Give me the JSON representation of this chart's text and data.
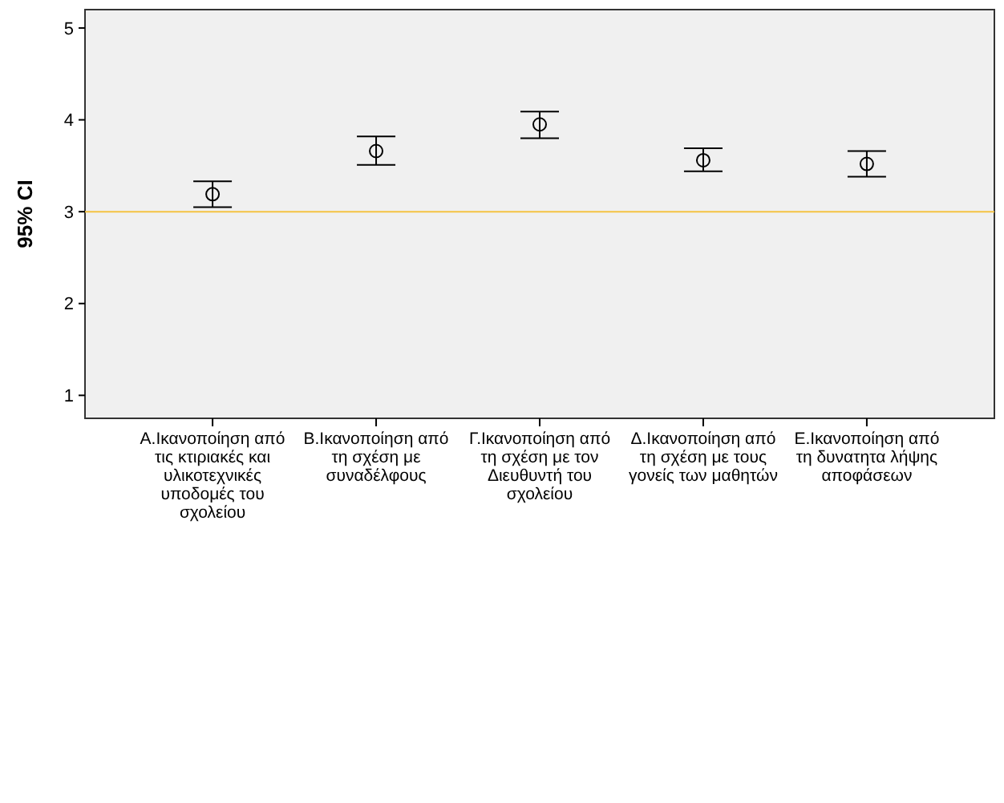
{
  "chart_data": {
    "type": "scatter",
    "ylabel": "95% CI",
    "categories": [
      "Α.Ικανοποίηση από τις κτιριακές και υλικοτεχνικές υποδομές του σχολείου",
      "Β.Ικανοποίηση από τη σχέση με συναδέλφους",
      "Γ.Ικανοποίηση από τη σχέση με τον Διευθυντή του σχολείου",
      "Δ.Ικανοποίηση από τη σχέση με τους γονείς των μαθητών",
      "Ε.Ικανοποίηση από τη δυνατητα λήψης αποφάσεων"
    ],
    "values": [
      3.19,
      3.66,
      3.95,
      3.56,
      3.52
    ],
    "errors": [
      [
        3.05,
        3.33
      ],
      [
        3.51,
        3.82
      ],
      [
        3.8,
        4.09
      ],
      [
        3.44,
        3.69
      ],
      [
        3.38,
        3.66
      ]
    ],
    "color": "#000000",
    "marker": "circle",
    "ylim": [
      0.75,
      5.2
    ],
    "yticks": [
      1,
      2,
      3,
      4,
      5
    ],
    "ref_lines": [
      {
        "axis": "y",
        "value": 3,
        "color": "#f5c342"
      }
    ]
  }
}
